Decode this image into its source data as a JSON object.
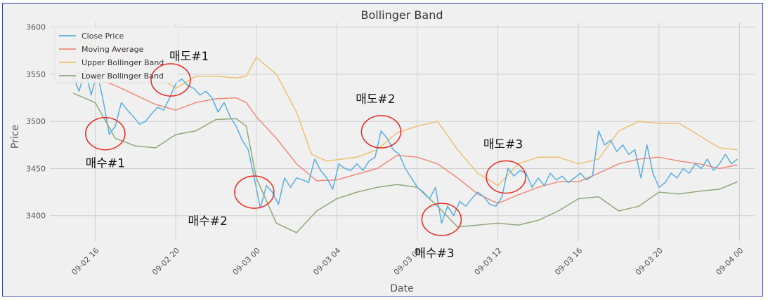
{
  "chart_data": {
    "type": "line",
    "title": "Bollinger Band",
    "xlabel": "Date",
    "ylabel": "Price",
    "xlim": [
      "2023-09-02 13:45",
      "2023-09-04 00:45"
    ],
    "ylim": [
      3373,
      3605
    ],
    "y_ticks": [
      3400,
      3450,
      3500,
      3550,
      3600
    ],
    "x_ticks": [
      "2023-09-02 16:00",
      "2023-09-02 20:00",
      "2023-09-03 00:00",
      "2023-09-03 04:00",
      "2023-09-03 08:00",
      "2023-09-03 12:00",
      "2023-09-03 16:00",
      "2023-09-03 20:00",
      "2023-09-04 00:00"
    ],
    "x_tick_labels": [
      "09-02 16",
      "09-02 20",
      "09-03 00",
      "09-03 04",
      "09-03 08",
      "09-03 12",
      "09-03 16",
      "09-03 20",
      "09-04 00"
    ],
    "grid": true,
    "legend_position": "top-left",
    "series": [
      {
        "name": "Close Price",
        "color": "#5aaee0",
        "points": [
          [
            "2023-09-02 14:54",
            3548
          ],
          [
            "2023-09-02 15:12",
            3532
          ],
          [
            "2023-09-02 15:30",
            3555
          ],
          [
            "2023-09-02 15:48",
            3528
          ],
          [
            "2023-09-02 16:06",
            3552
          ],
          [
            "2023-09-02 16:24",
            3522
          ],
          [
            "2023-09-02 16:42",
            3486
          ],
          [
            "2023-09-02 17:00",
            3495
          ],
          [
            "2023-09-02 17:18",
            3520
          ],
          [
            "2023-09-02 17:36",
            3512
          ],
          [
            "2023-09-02 17:54",
            3505
          ],
          [
            "2023-09-02 18:12",
            3497
          ],
          [
            "2023-09-02 18:30",
            3500
          ],
          [
            "2023-09-02 18:48",
            3508
          ],
          [
            "2023-09-02 19:06",
            3515
          ],
          [
            "2023-09-02 19:24",
            3512
          ],
          [
            "2023-09-02 19:42",
            3525
          ],
          [
            "2023-09-02 20:00",
            3540
          ],
          [
            "2023-09-02 20:18",
            3545
          ],
          [
            "2023-09-02 20:36",
            3538
          ],
          [
            "2023-09-02 20:54",
            3535
          ],
          [
            "2023-09-02 21:12",
            3528
          ],
          [
            "2023-09-02 21:30",
            3532
          ],
          [
            "2023-09-02 21:48",
            3525
          ],
          [
            "2023-09-02 22:06",
            3510
          ],
          [
            "2023-09-02 22:24",
            3520
          ],
          [
            "2023-09-02 22:42",
            3505
          ],
          [
            "2023-09-02 23:00",
            3495
          ],
          [
            "2023-09-02 23:18",
            3480
          ],
          [
            "2023-09-02 23:36",
            3470
          ],
          [
            "2023-09-02 23:54",
            3440
          ],
          [
            "2023-09-03 00:12",
            3408
          ],
          [
            "2023-09-03 00:30",
            3432
          ],
          [
            "2023-09-03 00:48",
            3425
          ],
          [
            "2023-09-03 01:06",
            3412
          ],
          [
            "2023-09-03 01:24",
            3440
          ],
          [
            "2023-09-03 01:42",
            3430
          ],
          [
            "2023-09-03 02:00",
            3440
          ],
          [
            "2023-09-03 02:18",
            3438
          ],
          [
            "2023-09-03 02:36",
            3435
          ],
          [
            "2023-09-03 02:54",
            3460
          ],
          [
            "2023-09-03 03:12",
            3448
          ],
          [
            "2023-09-03 03:30",
            3440
          ],
          [
            "2023-09-03 03:48",
            3428
          ],
          [
            "2023-09-03 04:06",
            3455
          ],
          [
            "2023-09-03 04:24",
            3450
          ],
          [
            "2023-09-03 04:42",
            3448
          ],
          [
            "2023-09-03 05:00",
            3455
          ],
          [
            "2023-09-03 05:18",
            3448
          ],
          [
            "2023-09-03 05:36",
            3458
          ],
          [
            "2023-09-03 05:54",
            3462
          ],
          [
            "2023-09-03 06:12",
            3490
          ],
          [
            "2023-09-03 06:30",
            3482
          ],
          [
            "2023-09-03 06:48",
            3470
          ],
          [
            "2023-09-03 07:06",
            3465
          ],
          [
            "2023-09-03 07:24",
            3450
          ],
          [
            "2023-09-03 07:42",
            3440
          ],
          [
            "2023-09-03 08:00",
            3430
          ],
          [
            "2023-09-03 08:18",
            3425
          ],
          [
            "2023-09-03 08:36",
            3418
          ],
          [
            "2023-09-03 08:54",
            3430
          ],
          [
            "2023-09-03 09:12",
            3392
          ],
          [
            "2023-09-03 09:30",
            3410
          ],
          [
            "2023-09-03 09:48",
            3400
          ],
          [
            "2023-09-03 10:06",
            3415
          ],
          [
            "2023-09-03 10:24",
            3410
          ],
          [
            "2023-09-03 10:42",
            3418
          ],
          [
            "2023-09-03 11:00",
            3425
          ],
          [
            "2023-09-03 11:18",
            3420
          ],
          [
            "2023-09-03 11:36",
            3412
          ],
          [
            "2023-09-03 11:54",
            3410
          ],
          [
            "2023-09-03 12:12",
            3420
          ],
          [
            "2023-09-03 12:30",
            3450
          ],
          [
            "2023-09-03 12:48",
            3442
          ],
          [
            "2023-09-03 13:06",
            3448
          ],
          [
            "2023-09-03 13:24",
            3445
          ],
          [
            "2023-09-03 13:42",
            3430
          ],
          [
            "2023-09-03 14:00",
            3440
          ],
          [
            "2023-09-03 14:18",
            3432
          ],
          [
            "2023-09-03 14:36",
            3445
          ],
          [
            "2023-09-03 14:54",
            3438
          ],
          [
            "2023-09-03 15:12",
            3442
          ],
          [
            "2023-09-03 15:30",
            3435
          ],
          [
            "2023-09-03 15:48",
            3440
          ],
          [
            "2023-09-03 16:06",
            3445
          ],
          [
            "2023-09-03 16:24",
            3438
          ],
          [
            "2023-09-03 16:42",
            3442
          ],
          [
            "2023-09-03 17:00",
            3490
          ],
          [
            "2023-09-03 17:18",
            3475
          ],
          [
            "2023-09-03 17:36",
            3480
          ],
          [
            "2023-09-03 17:54",
            3468
          ],
          [
            "2023-09-03 18:12",
            3475
          ],
          [
            "2023-09-03 18:30",
            3465
          ],
          [
            "2023-09-03 18:48",
            3470
          ],
          [
            "2023-09-03 19:06",
            3440
          ],
          [
            "2023-09-03 19:24",
            3475
          ],
          [
            "2023-09-03 19:42",
            3445
          ],
          [
            "2023-09-03 20:00",
            3430
          ],
          [
            "2023-09-03 20:18",
            3435
          ],
          [
            "2023-09-03 20:36",
            3445
          ],
          [
            "2023-09-03 20:54",
            3440
          ],
          [
            "2023-09-03 21:12",
            3450
          ],
          [
            "2023-09-03 21:30",
            3445
          ],
          [
            "2023-09-03 21:48",
            3455
          ],
          [
            "2023-09-03 22:06",
            3450
          ],
          [
            "2023-09-03 22:24",
            3460
          ],
          [
            "2023-09-03 22:42",
            3448
          ],
          [
            "2023-09-03 23:00",
            3455
          ],
          [
            "2023-09-03 23:18",
            3465
          ],
          [
            "2023-09-03 23:36",
            3455
          ],
          [
            "2023-09-03 23:54",
            3460
          ]
        ]
      },
      {
        "name": "Moving Average",
        "color": "#f08a78",
        "points": [
          [
            "2023-09-02 14:54",
            3553
          ],
          [
            "2023-09-02 16:00",
            3546
          ],
          [
            "2023-09-02 17:00",
            3538
          ],
          [
            "2023-09-02 18:00",
            3528
          ],
          [
            "2023-09-02 19:00",
            3518
          ],
          [
            "2023-09-02 20:00",
            3512
          ],
          [
            "2023-09-02 21:00",
            3520
          ],
          [
            "2023-09-02 22:00",
            3524
          ],
          [
            "2023-09-02 23:00",
            3525
          ],
          [
            "2023-09-02 23:30",
            3520
          ],
          [
            "2023-09-03 00:00",
            3505
          ],
          [
            "2023-09-03 01:00",
            3482
          ],
          [
            "2023-09-03 02:00",
            3455
          ],
          [
            "2023-09-03 03:00",
            3437
          ],
          [
            "2023-09-03 04:00",
            3438
          ],
          [
            "2023-09-03 05:00",
            3444
          ],
          [
            "2023-09-03 06:00",
            3450
          ],
          [
            "2023-09-03 07:00",
            3464
          ],
          [
            "2023-09-03 08:00",
            3462
          ],
          [
            "2023-09-03 09:00",
            3455
          ],
          [
            "2023-09-03 10:00",
            3440
          ],
          [
            "2023-09-03 11:00",
            3423
          ],
          [
            "2023-09-03 12:00",
            3413
          ],
          [
            "2023-09-03 13:00",
            3422
          ],
          [
            "2023-09-03 14:00",
            3430
          ],
          [
            "2023-09-03 15:00",
            3436
          ],
          [
            "2023-09-03 16:00",
            3436
          ],
          [
            "2023-09-03 17:00",
            3445
          ],
          [
            "2023-09-03 18:00",
            3455
          ],
          [
            "2023-09-03 19:00",
            3460
          ],
          [
            "2023-09-03 20:00",
            3462
          ],
          [
            "2023-09-03 21:00",
            3458
          ],
          [
            "2023-09-03 22:00",
            3455
          ],
          [
            "2023-09-03 23:00",
            3450
          ],
          [
            "2023-09-03 23:54",
            3454
          ]
        ]
      },
      {
        "name": "Upper Bollinger Band",
        "color": "#eec070",
        "points": [
          [
            "2023-09-02 14:54",
            3588
          ],
          [
            "2023-09-02 16:00",
            3580
          ],
          [
            "2023-09-02 17:00",
            3575
          ],
          [
            "2023-09-02 18:00",
            3565
          ],
          [
            "2023-09-02 19:00",
            3550
          ],
          [
            "2023-09-02 20:00",
            3535
          ],
          [
            "2023-09-02 21:00",
            3548
          ],
          [
            "2023-09-02 22:00",
            3548
          ],
          [
            "2023-09-02 23:00",
            3546
          ],
          [
            "2023-09-02 23:30",
            3548
          ],
          [
            "2023-09-03 00:00",
            3568
          ],
          [
            "2023-09-03 01:00",
            3550
          ],
          [
            "2023-09-03 02:00",
            3510
          ],
          [
            "2023-09-03 02:45",
            3465
          ],
          [
            "2023-09-03 03:30",
            3458
          ],
          [
            "2023-09-03 05:00",
            3462
          ],
          [
            "2023-09-03 06:00",
            3470
          ],
          [
            "2023-09-03 07:00",
            3488
          ],
          [
            "2023-09-03 08:00",
            3495
          ],
          [
            "2023-09-03 09:00",
            3500
          ],
          [
            "2023-09-03 10:00",
            3470
          ],
          [
            "2023-09-03 11:00",
            3445
          ],
          [
            "2023-09-03 12:00",
            3432
          ],
          [
            "2023-09-03 13:00",
            3455
          ],
          [
            "2023-09-03 14:00",
            3462
          ],
          [
            "2023-09-03 15:00",
            3462
          ],
          [
            "2023-09-03 16:00",
            3455
          ],
          [
            "2023-09-03 17:00",
            3460
          ],
          [
            "2023-09-03 18:00",
            3490
          ],
          [
            "2023-09-03 19:00",
            3500
          ],
          [
            "2023-09-03 20:00",
            3498
          ],
          [
            "2023-09-03 21:00",
            3498
          ],
          [
            "2023-09-03 22:00",
            3485
          ],
          [
            "2023-09-03 23:00",
            3472
          ],
          [
            "2023-09-03 23:54",
            3470
          ]
        ]
      },
      {
        "name": "Lower Bollinger Band",
        "color": "#8eaa76",
        "points": [
          [
            "2023-09-02 14:54",
            3530
          ],
          [
            "2023-09-02 16:00",
            3520
          ],
          [
            "2023-09-02 17:00",
            3482
          ],
          [
            "2023-09-02 18:00",
            3474
          ],
          [
            "2023-09-02 19:00",
            3472
          ],
          [
            "2023-09-02 20:00",
            3486
          ],
          [
            "2023-09-02 21:00",
            3490
          ],
          [
            "2023-09-02 22:00",
            3502
          ],
          [
            "2023-09-02 23:00",
            3503
          ],
          [
            "2023-09-02 23:30",
            3495
          ],
          [
            "2023-09-03 00:00",
            3440
          ],
          [
            "2023-09-03 01:00",
            3392
          ],
          [
            "2023-09-03 02:00",
            3382
          ],
          [
            "2023-09-03 03:00",
            3405
          ],
          [
            "2023-09-03 04:00",
            3418
          ],
          [
            "2023-09-03 05:00",
            3425
          ],
          [
            "2023-09-03 06:00",
            3430
          ],
          [
            "2023-09-03 07:00",
            3433
          ],
          [
            "2023-09-03 08:00",
            3430
          ],
          [
            "2023-09-03 09:00",
            3410
          ],
          [
            "2023-09-03 10:00",
            3388
          ],
          [
            "2023-09-03 11:00",
            3390
          ],
          [
            "2023-09-03 12:00",
            3392
          ],
          [
            "2023-09-03 13:00",
            3390
          ],
          [
            "2023-09-03 14:00",
            3395
          ],
          [
            "2023-09-03 15:00",
            3405
          ],
          [
            "2023-09-03 16:00",
            3418
          ],
          [
            "2023-09-03 17:00",
            3420
          ],
          [
            "2023-09-03 18:00",
            3405
          ],
          [
            "2023-09-03 19:00",
            3410
          ],
          [
            "2023-09-03 20:00",
            3425
          ],
          [
            "2023-09-03 21:00",
            3423
          ],
          [
            "2023-09-03 22:00",
            3426
          ],
          [
            "2023-09-03 23:00",
            3428
          ],
          [
            "2023-09-03 23:54",
            3436
          ]
        ]
      }
    ],
    "annotations": [
      {
        "label": "매도#1",
        "x": "2023-09-02 19:45",
        "y": 3544
      },
      {
        "label": "매수#1",
        "x": "2023-09-02 16:30",
        "y": 3487
      },
      {
        "label": "매수#2",
        "x": "2023-09-02 23:54",
        "y": 3425
      },
      {
        "label": "매도#2",
        "x": "2023-09-03 06:12",
        "y": 3489
      },
      {
        "label": "매수#3",
        "x": "2023-09-03 09:12",
        "y": 3396
      },
      {
        "label": "매도#3",
        "x": "2023-09-03 12:24",
        "y": 3441
      }
    ]
  }
}
